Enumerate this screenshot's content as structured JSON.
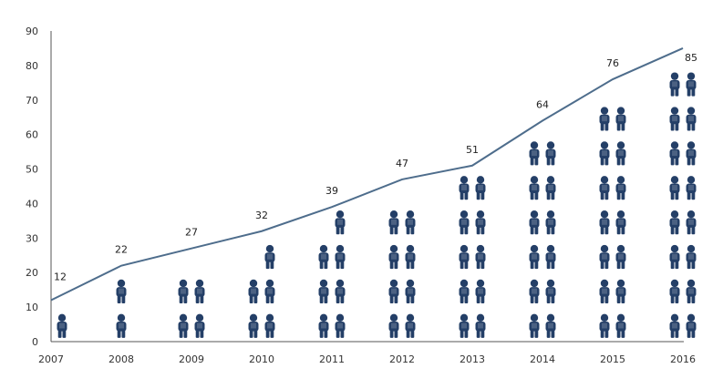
{
  "chart_data": {
    "type": "line",
    "x": [
      "2007",
      "2008",
      "2009",
      "2010",
      "2011",
      "2012",
      "2013",
      "2014",
      "2015",
      "2016"
    ],
    "series": [
      {
        "values": [
          12,
          22,
          27,
          32,
          39,
          47,
          51,
          64,
          76,
          85
        ]
      }
    ],
    "data_labels": [
      "12",
      "22",
      "27",
      "32",
      "39",
      "47",
      "51",
      "64",
      "76",
      "85"
    ],
    "y_ticks": [
      "0",
      "10",
      "20",
      "30",
      "40",
      "50",
      "60",
      "70",
      "80",
      "90"
    ],
    "ylim": [
      0,
      90
    ],
    "grid": false,
    "legend": "none",
    "pictograph": {
      "icon": "person-icon",
      "columns_per_year": [
        1,
        1,
        2,
        2,
        2,
        2,
        2,
        2,
        2,
        2
      ],
      "column_heights": [
        [
          8
        ],
        [
          20
        ],
        [
          20,
          16
        ],
        [
          20,
          30
        ],
        [
          28,
          38
        ],
        [
          40,
          44
        ],
        [
          48,
          48
        ],
        [
          60,
          60
        ],
        [
          70,
          70
        ],
        [
          80,
          80
        ]
      ],
      "unit_height": 10
    },
    "colors": {
      "line": "#4e6d8c",
      "icon": "#243f67",
      "axis": "#555555"
    }
  }
}
